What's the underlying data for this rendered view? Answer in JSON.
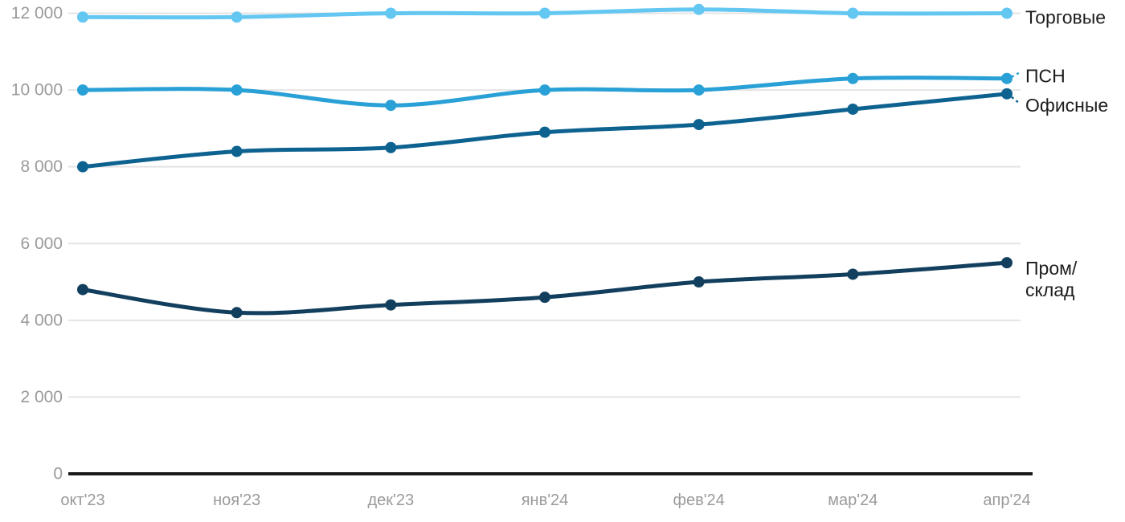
{
  "chart_data": {
    "type": "line",
    "categories": [
      "окт'23",
      "ноя'23",
      "дек'23",
      "янв'24",
      "фев'24",
      "мар'24",
      "апр'24"
    ],
    "series": [
      {
        "name": "Торговые",
        "label_lines": [
          "Торговые"
        ],
        "color": "#64C7F2",
        "values": [
          11900,
          11900,
          12000,
          12000,
          12100,
          12000,
          12000
        ]
      },
      {
        "name": "ПСН",
        "label_lines": [
          "ПСН"
        ],
        "color": "#29A0D6",
        "values": [
          10000,
          10000,
          9600,
          10000,
          10000,
          10300,
          10300
        ]
      },
      {
        "name": "Офисные",
        "label_lines": [
          "Офисные"
        ],
        "color": "#0E6290",
        "values": [
          8000,
          8400,
          8500,
          8900,
          9100,
          9500,
          9900
        ]
      },
      {
        "name": "Пром/склад",
        "label_lines": [
          "Пром/",
          "склад"
        ],
        "color": "#123F5E",
        "values": [
          4800,
          4200,
          4400,
          4600,
          5000,
          5200,
          5500
        ]
      }
    ],
    "y_axis": {
      "range": [
        0,
        12000
      ],
      "ticks": [
        {
          "value": 0,
          "label": "0"
        },
        {
          "value": 2000,
          "label": "2 000"
        },
        {
          "value": 4000,
          "label": "4 000"
        },
        {
          "value": 6000,
          "label": "6 000"
        },
        {
          "value": 8000,
          "label": "8 000"
        },
        {
          "value": 10000,
          "label": "10 000"
        },
        {
          "value": 12000,
          "label": "12 000"
        }
      ]
    },
    "grid": true,
    "legend_position": "right-of-line-ends",
    "title": "",
    "xlabel": "",
    "ylabel": "",
    "colors": {
      "tick_text": "#9a9a9a",
      "series_label_text": "#1d1d1d",
      "gridline": "#e4e4e4",
      "axis_line": "#1a1a1a",
      "background": "#ffffff"
    }
  }
}
